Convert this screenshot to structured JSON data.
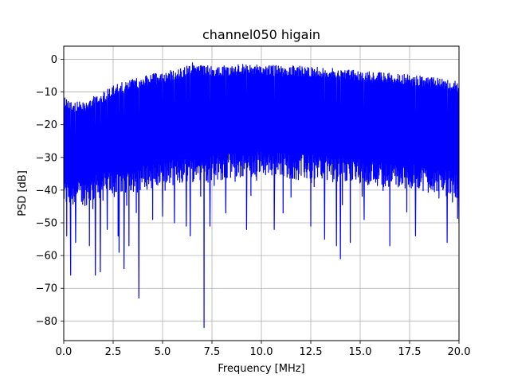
{
  "chart_data": {
    "type": "line",
    "title": "channel050 higain",
    "xlabel": "Frequency [MHz]",
    "ylabel": "PSD [dB]",
    "xlim": [
      0,
      20
    ],
    "ylim": [
      -86,
      4
    ],
    "xticks": [
      0,
      2.5,
      5,
      7.5,
      10,
      12.5,
      15,
      17.5,
      20
    ],
    "xtick_labels": [
      "0.0",
      "2.5",
      "5.0",
      "7.5",
      "10.0",
      "12.5",
      "15.0",
      "17.5",
      "20.0"
    ],
    "yticks": [
      0,
      -10,
      -20,
      -30,
      -40,
      -50,
      -60,
      -70,
      -80
    ],
    "ytick_labels": [
      "0",
      "−10",
      "−20",
      "−30",
      "−40",
      "−50",
      "−60",
      "−70",
      "−80"
    ],
    "grid": true,
    "series_color": "#0000ff",
    "upper_envelope": {
      "x": [
        0,
        0.5,
        1,
        1.5,
        2,
        2.5,
        3,
        4,
        5,
        6,
        6.5,
        7,
        8,
        9,
        10,
        11,
        12,
        13,
        14,
        15,
        16,
        17,
        18,
        19,
        20
      ],
      "y": [
        -11,
        -13,
        -13,
        -11,
        -10,
        -8,
        -7,
        -5,
        -4,
        -2.5,
        -1,
        -2,
        -2,
        -1.5,
        -1.5,
        -2,
        -2,
        -2.5,
        -3,
        -3.5,
        -4,
        -4.5,
        -5,
        -5.5,
        -7
      ]
    },
    "lower_floor": {
      "x": [
        0,
        1,
        2,
        3,
        4,
        5,
        6,
        7,
        8,
        9,
        10,
        11,
        12,
        13,
        14,
        15,
        16,
        17,
        18,
        19,
        20
      ],
      "y": [
        -45,
        -45,
        -42,
        -41,
        -40,
        -39,
        -38,
        -37,
        -37,
        -36,
        -36,
        -36,
        -37,
        -37,
        -38,
        -38,
        -39,
        -40,
        -40,
        -41,
        -43
      ]
    },
    "dips": [
      {
        "x": 0.15,
        "y": -54
      },
      {
        "x": 0.35,
        "y": -66
      },
      {
        "x": 0.6,
        "y": -56
      },
      {
        "x": 1.3,
        "y": -57
      },
      {
        "x": 1.6,
        "y": -66
      },
      {
        "x": 1.85,
        "y": -65
      },
      {
        "x": 2.2,
        "y": -52
      },
      {
        "x": 2.75,
        "y": -54
      },
      {
        "x": 2.8,
        "y": -59
      },
      {
        "x": 3.05,
        "y": -64
      },
      {
        "x": 3.3,
        "y": -57
      },
      {
        "x": 3.8,
        "y": -73
      },
      {
        "x": 4.5,
        "y": -49
      },
      {
        "x": 5.0,
        "y": -48
      },
      {
        "x": 5.6,
        "y": -50
      },
      {
        "x": 6.2,
        "y": -51
      },
      {
        "x": 6.4,
        "y": -54
      },
      {
        "x": 7.1,
        "y": -82
      },
      {
        "x": 7.4,
        "y": -51
      },
      {
        "x": 8.2,
        "y": -47
      },
      {
        "x": 9.25,
        "y": -52
      },
      {
        "x": 10.65,
        "y": -52
      },
      {
        "x": 11.1,
        "y": -47
      },
      {
        "x": 12.5,
        "y": -51
      },
      {
        "x": 13.2,
        "y": -55
      },
      {
        "x": 13.8,
        "y": -57
      },
      {
        "x": 14.0,
        "y": -61
      },
      {
        "x": 14.5,
        "y": -56
      },
      {
        "x": 15.2,
        "y": -49
      },
      {
        "x": 16.5,
        "y": -57
      },
      {
        "x": 17.8,
        "y": -54
      },
      {
        "x": 19.4,
        "y": -56
      },
      {
        "x": 20.0,
        "y": -50
      }
    ]
  }
}
